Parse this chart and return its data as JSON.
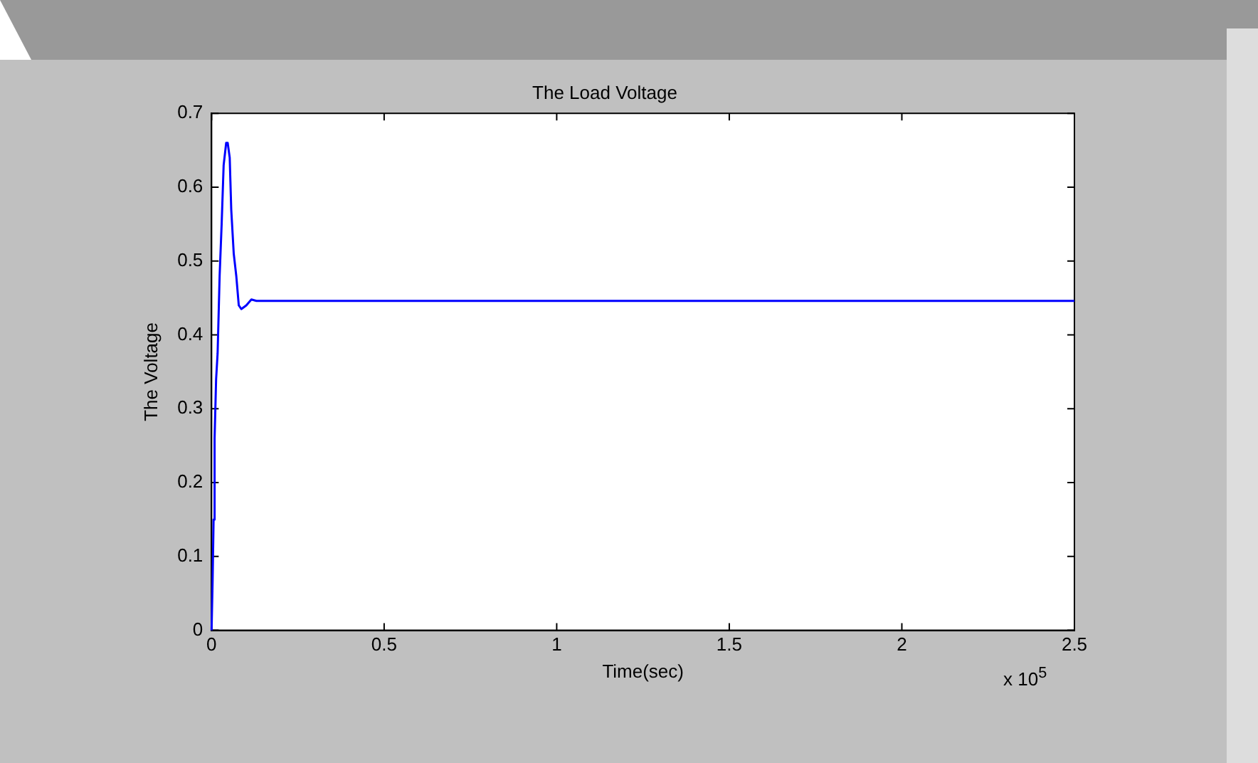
{
  "chart_data": {
    "type": "line",
    "title": "The Load Voltage",
    "xlabel": "Time(sec)",
    "ylabel": "The Voltage",
    "annotations": [
      "x 10$^{5}$"
    ],
    "x": [
      0,
      0.00292,
      0.00584,
      0.00876,
      0.01314,
      0.0175,
      0.02336,
      0.0292,
      0.035,
      0.04234,
      0.0467,
      0.05256,
      0.05694,
      0.06424,
      0.07154,
      0.07884,
      0.08614,
      0.10074,
      0.11534,
      0.12994,
      2.5
    ],
    "series": [
      {
        "color": "#0000ff",
        "values": [
          0,
          0.065,
          0.15,
          0.26,
          0.34,
          0.375,
          0.48,
          0.55,
          0.63,
          0.66,
          0.66,
          0.64,
          0.57,
          0.51,
          0.48,
          0.44,
          0.435,
          0.44,
          0.448,
          0.446,
          0.446
        ]
      }
    ],
    "xlim": [
      0,
      2.5
    ],
    "xticks": [
      0,
      0.5,
      1,
      1.5,
      2,
      2.5
    ],
    "ylim": [
      0,
      0.7
    ],
    "yticks": [
      0,
      0.1,
      0.2,
      0.3,
      0.4,
      0.5,
      0.6,
      0.7
    ],
    "grid": false,
    "legend": false,
    "marker": "none",
    "line_style": "solid"
  }
}
